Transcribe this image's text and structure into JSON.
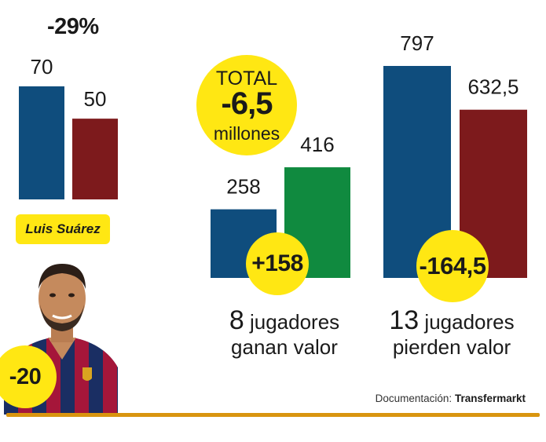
{
  "chart_data": [
    {
      "type": "bar",
      "categories": [
        "Luis Suárez"
      ],
      "series": [
        {
          "values": [
            70
          ],
          "color": "#0f4d7d"
        },
        {
          "values": [
            50
          ],
          "color": "#7d1a1c"
        }
      ],
      "data_labels": [
        "70",
        "50"
      ],
      "change_label": "-29%",
      "difference_label": "-20",
      "ylim": [
        0,
        800
      ]
    },
    {
      "type": "bar",
      "categories": [
        "8 jugadores ganan valor",
        "13 jugadores pierden valor"
      ],
      "series": [
        {
          "values": [
            258,
            797
          ],
          "colors": [
            "#0f4d7d",
            "#0f4d7d"
          ]
        },
        {
          "values": [
            416,
            632.5
          ],
          "colors": [
            "#108a3f",
            "#7d1a1c"
          ]
        }
      ],
      "data_labels": [
        [
          "258",
          "797"
        ],
        [
          "416",
          "632,5"
        ]
      ],
      "difference_labels": [
        "+158",
        "-164,5"
      ],
      "ylim": [
        0,
        800
      ]
    }
  ],
  "player": {
    "name": "Luis Suárez"
  },
  "total": {
    "line1": "TOTAL",
    "line2": "-6,5",
    "line3": "millones"
  },
  "groups": {
    "up": {
      "count": "8",
      "line1": "jugadores",
      "line2": "ganan valor"
    },
    "down": {
      "count": "13",
      "line1": "jugadores",
      "line2": "pierden valor"
    }
  },
  "source": {
    "label": "Documentación:",
    "name": "Transfermarkt"
  },
  "colors": {
    "blue": "#0f4d7d",
    "red": "#7d1a1c",
    "green": "#108a3f",
    "yellow": "#ffe713",
    "baseline": "#d9950f"
  }
}
